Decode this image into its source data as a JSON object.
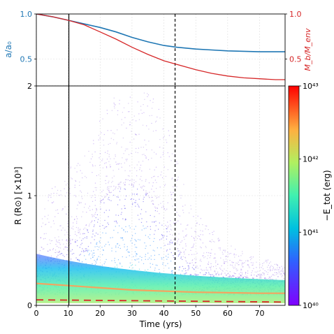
{
  "chart_data": [
    {
      "type": "line",
      "panel": "top",
      "x": [
        0,
        5,
        10,
        15,
        20,
        25,
        30,
        35,
        40,
        44,
        50,
        55,
        60,
        65,
        70,
        75,
        78
      ],
      "xlim": [
        0,
        78
      ],
      "series": [
        {
          "name": "a/a0",
          "color": "#1f77b4",
          "axis": "left",
          "values": [
            1.0,
            0.97,
            0.93,
            0.89,
            0.85,
            0.8,
            0.74,
            0.69,
            0.65,
            0.63,
            0.61,
            0.6,
            0.59,
            0.585,
            0.58,
            0.58,
            0.58
          ]
        },
        {
          "name": "Mb/Menv",
          "color": "#d62728",
          "axis": "right",
          "values": [
            1.0,
            0.97,
            0.93,
            0.88,
            0.8,
            0.72,
            0.63,
            0.55,
            0.48,
            0.44,
            0.38,
            0.34,
            0.31,
            0.29,
            0.28,
            0.27,
            0.27
          ]
        }
      ],
      "ylabel_left": "a/a₀",
      "ylabel_right": "M_b/M_env",
      "yticks_left": [
        "0.5",
        "1.0"
      ],
      "yticks_right": [
        "0.5",
        "1.0"
      ],
      "ylim": [
        0.2,
        1.0
      ],
      "grid": true
    },
    {
      "type": "scatter",
      "panel": "bottom",
      "xlabel": "Time (yrs)",
      "ylabel": "R (R⊙) [×10³]",
      "xlim": [
        0,
        78
      ],
      "ylim": [
        0,
        2
      ],
      "xticks": [
        "0",
        "10",
        "20",
        "30",
        "40",
        "50",
        "60",
        "70"
      ],
      "yticks": [
        "0",
        "1",
        "2"
      ],
      "vlines": [
        {
          "x": 10.2,
          "style": "solid",
          "color": "#000000"
        },
        {
          "x": 43.5,
          "style": "dashed",
          "color": "#000000"
        }
      ],
      "orange_line": {
        "color": "#f4a460",
        "x": [
          0,
          10,
          20,
          30,
          40,
          50,
          60,
          70,
          78
        ],
        "y": [
          0.2,
          0.18,
          0.16,
          0.14,
          0.13,
          0.12,
          0.115,
          0.11,
          0.11
        ]
      },
      "red_dashed_line": {
        "color": "#d62728",
        "x": [
          0,
          78
        ],
        "y": [
          0.05,
          0.03
        ]
      },
      "density_profile": {
        "note": "particle-density envelope estimated from scatter extent",
        "x": [
          0,
          2,
          5,
          8,
          10,
          13,
          17,
          20,
          24,
          28,
          32,
          35,
          38,
          41,
          43.5,
          47,
          52,
          58,
          64,
          70,
          78
        ],
        "y_upper": [
          0.3,
          0.9,
          1.1,
          1.05,
          1.4,
          1.3,
          1.5,
          1.7,
          1.9,
          1.95,
          2.0,
          2.0,
          1.9,
          1.8,
          1.5,
          1.0,
          0.8,
          0.6,
          0.5,
          0.45,
          0.35
        ],
        "y_core": [
          0.25,
          0.35,
          0.45,
          0.5,
          0.55,
          0.6,
          0.75,
          0.95,
          1.05,
          1.1,
          1.1,
          1.0,
          0.85,
          0.7,
          0.55,
          0.4,
          0.32,
          0.28,
          0.26,
          0.24,
          0.22
        ]
      },
      "colorbar": {
        "label": "−E_tot (erg)",
        "scale": "log",
        "ticks": [
          "10⁴⁰",
          "10⁴¹",
          "10⁴²",
          "10⁴³"
        ],
        "colormap": "rainbow",
        "range": [
          1e+40,
          1e+43
        ]
      }
    }
  ]
}
